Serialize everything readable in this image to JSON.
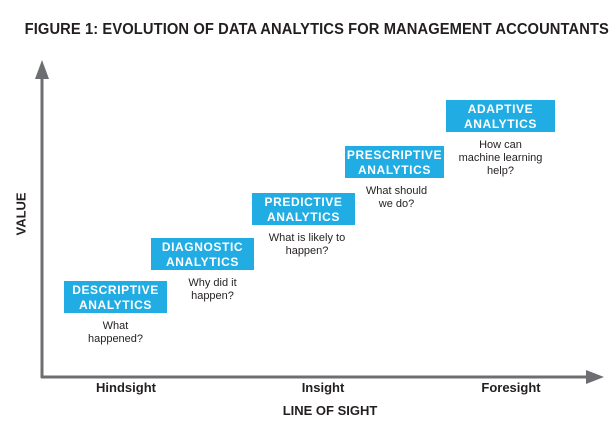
{
  "figure": {
    "title": "FIGURE 1: EVOLUTION OF DATA ANALYTICS FOR MANAGEMENT ACCOUNTANTS"
  },
  "axes": {
    "y_label": "VALUE",
    "x_label": "LINE OF SIGHT",
    "x_ticks": [
      "Hindsight",
      "Insight",
      "Foresight"
    ]
  },
  "stages": [
    {
      "line1": "DESCRIPTIVE",
      "line2": "ANALYTICS",
      "question": "What\nhappened?"
    },
    {
      "line1": "DIAGNOSTIC",
      "line2": "ANALYTICS",
      "question": "Why did it\nhappen?"
    },
    {
      "line1": "PREDICTIVE",
      "line2": "ANALYTICS",
      "question": "What is likely to\nhappen?"
    },
    {
      "line1": "PRESCRIPTIVE",
      "line2": "ANALYTICS",
      "question": "What should\nwe do?"
    },
    {
      "line1": "ADAPTIVE",
      "line2": "ANALYTICS",
      "question": "How can\nmachine learning\nhelp?"
    }
  ],
  "colors": {
    "box_fill": "#21ade3",
    "box_text": "#ffffff",
    "axis": "#6d6e71",
    "text": "#231f20"
  }
}
